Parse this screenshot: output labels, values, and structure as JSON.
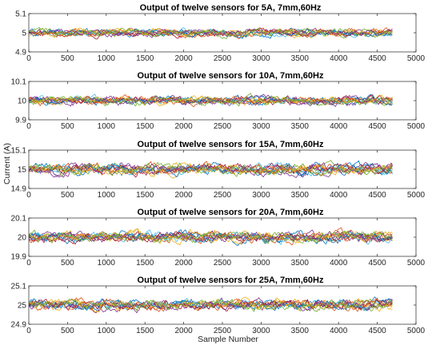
{
  "figure": {
    "ylabel": "Current (A)",
    "xlabel": "Sample Number"
  },
  "colors": [
    "#0072BD",
    "#D95319",
    "#EDB120",
    "#7E2F8E",
    "#77AC30",
    "#4DBEEE",
    "#A2142F",
    "#0072BD",
    "#D95319",
    "#EDB120",
    "#7E2F8E",
    "#77AC30"
  ],
  "chart_data": [
    {
      "type": "line",
      "title": "Output of twelve sensors for 5A, 7mm,60Hz",
      "xlim": [
        0,
        5000
      ],
      "ylim": [
        4.9,
        5.1
      ],
      "xticks": [
        0,
        500,
        1000,
        1500,
        2000,
        2500,
        3000,
        3500,
        4000,
        4500,
        5000
      ],
      "yticks": [
        4.9,
        5,
        5.1
      ],
      "ytick_labels": [
        "4.9",
        "5",
        "5.1"
      ],
      "center": 5,
      "spread": 0.018,
      "n_samples": 4700,
      "series_count": 12,
      "grid": false
    },
    {
      "type": "line",
      "title": "Output of twelve sensors  for 10A, 7mm,60Hz",
      "xlim": [
        0,
        5000
      ],
      "ylim": [
        9.9,
        10.1
      ],
      "xticks": [
        0,
        500,
        1000,
        1500,
        2000,
        2500,
        3000,
        3500,
        4000,
        4500,
        5000
      ],
      "yticks": [
        9.9,
        10,
        10.1
      ],
      "ytick_labels": [
        "9.9",
        "10",
        "10.1"
      ],
      "center": 10,
      "spread": 0.02,
      "n_samples": 4700,
      "series_count": 12,
      "grid": false
    },
    {
      "type": "line",
      "title": "Output of twelve sensors for 15A, 7mm,60Hz",
      "xlim": [
        0,
        5000
      ],
      "ylim": [
        14.9,
        15.1
      ],
      "xticks": [
        0,
        500,
        1000,
        1500,
        2000,
        2500,
        3000,
        3500,
        4000,
        4500,
        5000
      ],
      "yticks": [
        14.9,
        15,
        15.1
      ],
      "ytick_labels": [
        "14.9",
        "15",
        "15.1"
      ],
      "center": 15,
      "spread": 0.025,
      "n_samples": 4700,
      "series_count": 12,
      "grid": false
    },
    {
      "type": "line",
      "title": "Output of twelve sensors for 20A, 7mm,60Hz",
      "xlim": [
        0,
        5000
      ],
      "ylim": [
        19.9,
        20.1
      ],
      "xticks": [
        0,
        500,
        1000,
        1500,
        2000,
        2500,
        3000,
        3500,
        4000,
        4500,
        5000
      ],
      "yticks": [
        19.9,
        20,
        20.1
      ],
      "ytick_labels": [
        "19.9",
        "20",
        "20.1"
      ],
      "center": 20,
      "spread": 0.025,
      "n_samples": 4700,
      "series_count": 12,
      "grid": false
    },
    {
      "type": "line",
      "title": "Output of twelve sensors for 25A, 7mm,60Hz",
      "xlim": [
        0,
        5000
      ],
      "ylim": [
        24.9,
        25.1
      ],
      "xticks": [
        0,
        500,
        1000,
        1500,
        2000,
        2500,
        3000,
        3500,
        4000,
        4500,
        5000
      ],
      "yticks": [
        24.9,
        25,
        25.1
      ],
      "ytick_labels": [
        "24.9",
        "25",
        "25.1"
      ],
      "center": 25,
      "spread": 0.025,
      "n_samples": 4700,
      "series_count": 12,
      "grid": false
    }
  ]
}
